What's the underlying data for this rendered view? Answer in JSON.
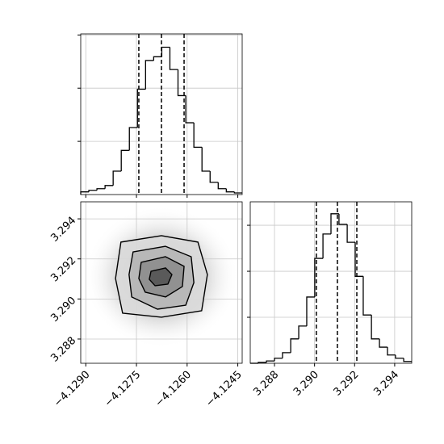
{
  "chart_data": [
    {
      "type": "histogram",
      "color": "#000000",
      "grid": true,
      "bins": [
        -4.12915,
        -4.12891,
        -4.12867,
        -4.12843,
        -4.12819,
        -4.12795,
        -4.12771,
        -4.12747,
        -4.12723,
        -4.12699,
        -4.12675,
        -4.12651,
        -4.12627,
        -4.12604,
        -4.1258,
        -4.12556,
        -4.12532,
        -4.12508,
        -4.12484,
        -4.1246,
        -4.12437
      ],
      "counts": [
        0.05,
        0.08,
        0.11,
        0.17,
        0.44,
        0.83,
        1.26,
        1.98,
        2.52,
        2.59,
        2.77,
        2.35,
        1.86,
        1.35,
        0.89,
        0.44,
        0.23,
        0.11,
        0.05,
        0.03
      ],
      "quantiles": [
        -4.12743,
        -4.12676,
        -4.12609
      ],
      "xlim": [
        -4.12915,
        -4.12437
      ],
      "ylim": [
        0,
        3.02
      ],
      "xticks": [
        -4.129,
        -4.1275,
        -4.126,
        -4.1245
      ],
      "yticks": [
        1,
        2,
        3
      ]
    },
    {
      "type": "contour",
      "color": "#000000",
      "grid": true,
      "fill_colors": [
        "#d9d9d9",
        "#b3b3b3",
        "#8a8a8a",
        "#505050"
      ],
      "contours": [
        {
          "x": [
            -4.12796,
            -4.12676,
            -4.12568,
            -4.1254,
            -4.12557,
            -4.12676,
            -4.12791,
            -4.12812
          ],
          "y": [
            3.29284,
            3.29316,
            3.29284,
            3.29122,
            3.28941,
            3.28909,
            3.28929,
            3.29102
          ]
        },
        {
          "x": [
            -4.1276,
            -4.12664,
            -4.12588,
            -4.1258,
            -4.12604,
            -4.12688,
            -4.12764,
            -4.12772
          ],
          "y": [
            3.29235,
            3.29263,
            3.29211,
            3.29082,
            3.28969,
            3.28949,
            3.2901,
            3.29122
          ]
        },
        {
          "x": [
            -4.12736,
            -4.12664,
            -4.12609,
            -4.12614,
            -4.12664,
            -4.12724,
            -4.12743
          ],
          "y": [
            3.29183,
            3.29211,
            3.29163,
            3.29062,
            3.2901,
            3.29034,
            3.29102
          ]
        },
        {
          "x": [
            -4.12707,
            -4.12664,
            -4.12645,
            -4.12657,
            -4.12695,
            -4.12712
          ],
          "y": [
            3.29138,
            3.29155,
            3.29122,
            3.29074,
            3.29066,
            3.29098
          ]
        }
      ],
      "xlim": [
        -4.12915,
        -4.12437
      ],
      "ylim": [
        3.28679,
        3.29485
      ],
      "xticks": [
        {
          "value": -4.129,
          "label": "−4.1290"
        },
        {
          "value": -4.1275,
          "label": "−4.1275"
        },
        {
          "value": -4.126,
          "label": "−4.1260"
        },
        {
          "value": -4.1245,
          "label": "−4.1245"
        }
      ],
      "yticks": [
        3.288,
        {
          "value": 3.29,
          "label": "3.290"
        },
        3.292,
        3.294
      ]
    },
    {
      "type": "histogram",
      "color": "#000000",
      "grid": true,
      "bins": [
        3.28679,
        3.28719,
        3.2876,
        3.288,
        3.2884,
        3.28881,
        3.28921,
        3.28961,
        3.29001,
        3.29042,
        3.29082,
        3.29122,
        3.29163,
        3.29203,
        3.29243,
        3.29284,
        3.29324,
        3.29364,
        3.29404,
        3.29445,
        3.29485
      ],
      "counts": [
        0,
        0.02,
        0.05,
        0.11,
        0.23,
        0.53,
        0.81,
        1.44,
        2.28,
        2.81,
        3.25,
        3.02,
        2.63,
        1.89,
        1.05,
        0.53,
        0.35,
        0.18,
        0.11,
        0.04
      ],
      "quantiles": [
        3.29009,
        3.29114,
        3.29211
      ],
      "xlim": [
        3.28679,
        3.29485
      ],
      "ylim": [
        0,
        3.51
      ],
      "xticks": [
        3.288,
        {
          "value": 3.29,
          "label": "3.290"
        },
        3.292,
        3.294
      ],
      "yticks": [
        1,
        2,
        3
      ]
    }
  ]
}
